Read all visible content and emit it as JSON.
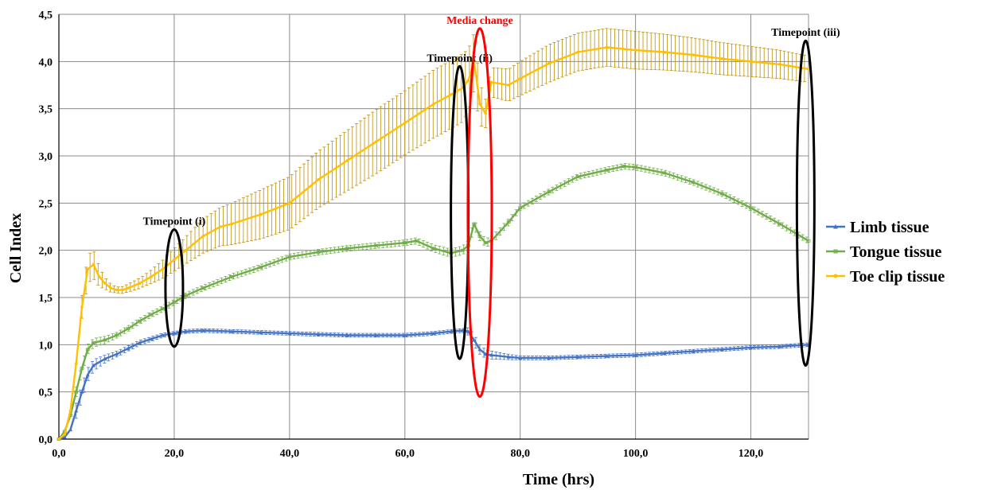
{
  "chart_data": {
    "type": "line",
    "title": "",
    "xlabel": "Time (hrs)",
    "ylabel": "Cell Index",
    "xlim": [
      0,
      130
    ],
    "ylim": [
      0,
      4.5
    ],
    "x_ticks": [
      0,
      20,
      40,
      60,
      80,
      100,
      120
    ],
    "x_tick_labels": [
      "0,0",
      "20,0",
      "40,0",
      "60,0",
      "80,0",
      "100,0",
      "120,0"
    ],
    "y_ticks": [
      0,
      0.5,
      1.0,
      1.5,
      2.0,
      2.5,
      3.0,
      3.5,
      4.0,
      4.5
    ],
    "y_tick_labels": [
      "0,0",
      "0,5",
      "1,0",
      "1,5",
      "2,0",
      "2,5",
      "3,0",
      "3,5",
      "4,0",
      "4,5"
    ],
    "grid": true,
    "legend_position": "right",
    "series": [
      {
        "name": "Limb tissue",
        "color": "#4472c4",
        "marker": "triangle",
        "points": [
          [
            0,
            0
          ],
          [
            1,
            0.02
          ],
          [
            2,
            0.1
          ],
          [
            3,
            0.3
          ],
          [
            4,
            0.5
          ],
          [
            5,
            0.68
          ],
          [
            6,
            0.78
          ],
          [
            8,
            0.85
          ],
          [
            10,
            0.9
          ],
          [
            12,
            0.96
          ],
          [
            14,
            1.02
          ],
          [
            16,
            1.06
          ],
          [
            18,
            1.1
          ],
          [
            20,
            1.12
          ],
          [
            22,
            1.14
          ],
          [
            25,
            1.15
          ],
          [
            30,
            1.14
          ],
          [
            35,
            1.13
          ],
          [
            40,
            1.12
          ],
          [
            45,
            1.11
          ],
          [
            50,
            1.1
          ],
          [
            55,
            1.1
          ],
          [
            60,
            1.1
          ],
          [
            65,
            1.12
          ],
          [
            68,
            1.14
          ],
          [
            70,
            1.15
          ],
          [
            71,
            1.14
          ],
          [
            72,
            1.05
          ],
          [
            73,
            0.95
          ],
          [
            74,
            0.9
          ],
          [
            75,
            0.89
          ],
          [
            78,
            0.87
          ],
          [
            80,
            0.86
          ],
          [
            85,
            0.86
          ],
          [
            90,
            0.87
          ],
          [
            95,
            0.88
          ],
          [
            100,
            0.89
          ],
          [
            105,
            0.91
          ],
          [
            110,
            0.93
          ],
          [
            115,
            0.95
          ],
          [
            120,
            0.97
          ],
          [
            125,
            0.98
          ],
          [
            130,
            1.0
          ]
        ],
        "errors": [
          [
            3,
            0.08
          ],
          [
            4,
            0.08
          ],
          [
            5,
            0.07
          ],
          [
            6,
            0.06
          ],
          [
            8,
            0.04
          ],
          [
            10,
            0.03
          ],
          [
            20,
            0.02
          ],
          [
            40,
            0.02
          ],
          [
            60,
            0.02
          ],
          [
            70,
            0.02
          ],
          [
            72,
            0.06
          ],
          [
            73,
            0.05
          ],
          [
            80,
            0.02
          ],
          [
            100,
            0.02
          ],
          [
            120,
            0.02
          ],
          [
            130,
            0.02
          ]
        ]
      },
      {
        "name": "Tongue tissue",
        "color": "#70ad47",
        "marker": "dash",
        "points": [
          [
            0,
            0
          ],
          [
            1,
            0.08
          ],
          [
            2,
            0.25
          ],
          [
            3,
            0.5
          ],
          [
            4,
            0.75
          ],
          [
            5,
            0.95
          ],
          [
            6,
            1.02
          ],
          [
            8,
            1.05
          ],
          [
            10,
            1.1
          ],
          [
            12,
            1.17
          ],
          [
            14,
            1.25
          ],
          [
            16,
            1.32
          ],
          [
            18,
            1.38
          ],
          [
            20,
            1.45
          ],
          [
            22,
            1.52
          ],
          [
            25,
            1.6
          ],
          [
            30,
            1.72
          ],
          [
            35,
            1.82
          ],
          [
            40,
            1.93
          ],
          [
            45,
            1.98
          ],
          [
            50,
            2.02
          ],
          [
            55,
            2.05
          ],
          [
            60,
            2.08
          ],
          [
            62,
            2.1
          ],
          [
            65,
            2.02
          ],
          [
            68,
            1.97
          ],
          [
            70,
            2.0
          ],
          [
            71,
            2.05
          ],
          [
            72,
            2.28
          ],
          [
            73,
            2.15
          ],
          [
            74,
            2.08
          ],
          [
            75,
            2.1
          ],
          [
            78,
            2.3
          ],
          [
            80,
            2.45
          ],
          [
            85,
            2.62
          ],
          [
            90,
            2.78
          ],
          [
            95,
            2.85
          ],
          [
            98,
            2.89
          ],
          [
            100,
            2.88
          ],
          [
            105,
            2.82
          ],
          [
            110,
            2.72
          ],
          [
            115,
            2.6
          ],
          [
            120,
            2.45
          ],
          [
            125,
            2.28
          ],
          [
            130,
            2.1
          ]
        ],
        "errors": [
          [
            3,
            0.05
          ],
          [
            5,
            0.05
          ],
          [
            10,
            0.03
          ],
          [
            20,
            0.03
          ],
          [
            40,
            0.03
          ],
          [
            60,
            0.03
          ],
          [
            72,
            0.05
          ],
          [
            80,
            0.03
          ],
          [
            100,
            0.03
          ],
          [
            120,
            0.03
          ],
          [
            130,
            0.03
          ]
        ]
      },
      {
        "name": "Toe clip tissue",
        "color": "#ffc000",
        "error_color": "#bf9000",
        "marker": "circle",
        "points": [
          [
            0,
            0
          ],
          [
            1,
            0.05
          ],
          [
            2,
            0.3
          ],
          [
            3,
            0.8
          ],
          [
            4,
            1.4
          ],
          [
            5,
            1.8
          ],
          [
            6,
            1.85
          ],
          [
            7,
            1.72
          ],
          [
            8,
            1.65
          ],
          [
            9,
            1.6
          ],
          [
            10,
            1.58
          ],
          [
            11,
            1.58
          ],
          [
            12,
            1.6
          ],
          [
            14,
            1.65
          ],
          [
            16,
            1.72
          ],
          [
            18,
            1.8
          ],
          [
            20,
            1.9
          ],
          [
            22,
            2.0
          ],
          [
            25,
            2.15
          ],
          [
            28,
            2.25
          ],
          [
            30,
            2.28
          ],
          [
            35,
            2.38
          ],
          [
            40,
            2.5
          ],
          [
            45,
            2.75
          ],
          [
            50,
            2.95
          ],
          [
            55,
            3.15
          ],
          [
            60,
            3.35
          ],
          [
            65,
            3.55
          ],
          [
            68,
            3.65
          ],
          [
            70,
            3.72
          ],
          [
            71,
            3.8
          ],
          [
            72,
            4.0
          ],
          [
            73,
            3.55
          ],
          [
            74,
            3.45
          ],
          [
            75,
            3.78
          ],
          [
            78,
            3.75
          ],
          [
            80,
            3.82
          ],
          [
            85,
            3.98
          ],
          [
            90,
            4.1
          ],
          [
            95,
            4.15
          ],
          [
            100,
            4.12
          ],
          [
            105,
            4.1
          ],
          [
            110,
            4.07
          ],
          [
            115,
            4.03
          ],
          [
            120,
            4.0
          ],
          [
            125,
            3.97
          ],
          [
            130,
            3.92
          ]
        ],
        "errors": [
          [
            4,
            0.12
          ],
          [
            5,
            0.15
          ],
          [
            6,
            0.15
          ],
          [
            8,
            0.06
          ],
          [
            10,
            0.03
          ],
          [
            15,
            0.06
          ],
          [
            20,
            0.12
          ],
          [
            25,
            0.18
          ],
          [
            30,
            0.22
          ],
          [
            35,
            0.26
          ],
          [
            40,
            0.28
          ],
          [
            45,
            0.3
          ],
          [
            50,
            0.32
          ],
          [
            55,
            0.34
          ],
          [
            60,
            0.34
          ],
          [
            65,
            0.36
          ],
          [
            70,
            0.36
          ],
          [
            72,
            0.3
          ],
          [
            74,
            0.15
          ],
          [
            80,
            0.18
          ],
          [
            85,
            0.2
          ],
          [
            90,
            0.2
          ],
          [
            95,
            0.2
          ],
          [
            100,
            0.2
          ],
          [
            110,
            0.18
          ],
          [
            120,
            0.16
          ],
          [
            130,
            0.14
          ]
        ]
      }
    ],
    "annotations": [
      {
        "text": "Timepoint (i)",
        "x": 20,
        "y": 1.6,
        "ry": 0.62,
        "color": "#000000"
      },
      {
        "text": "Timepoint (ii)",
        "x": 69.5,
        "y": 2.4,
        "ry": 1.55,
        "color": "#000000"
      },
      {
        "text": "Media change",
        "x": 73,
        "y": 2.4,
        "ry": 1.95,
        "color": "#ff0000"
      },
      {
        "text": "Timepoint (iii)",
        "x": 129.5,
        "y": 2.5,
        "ry": 1.72,
        "color": "#000000"
      }
    ]
  }
}
